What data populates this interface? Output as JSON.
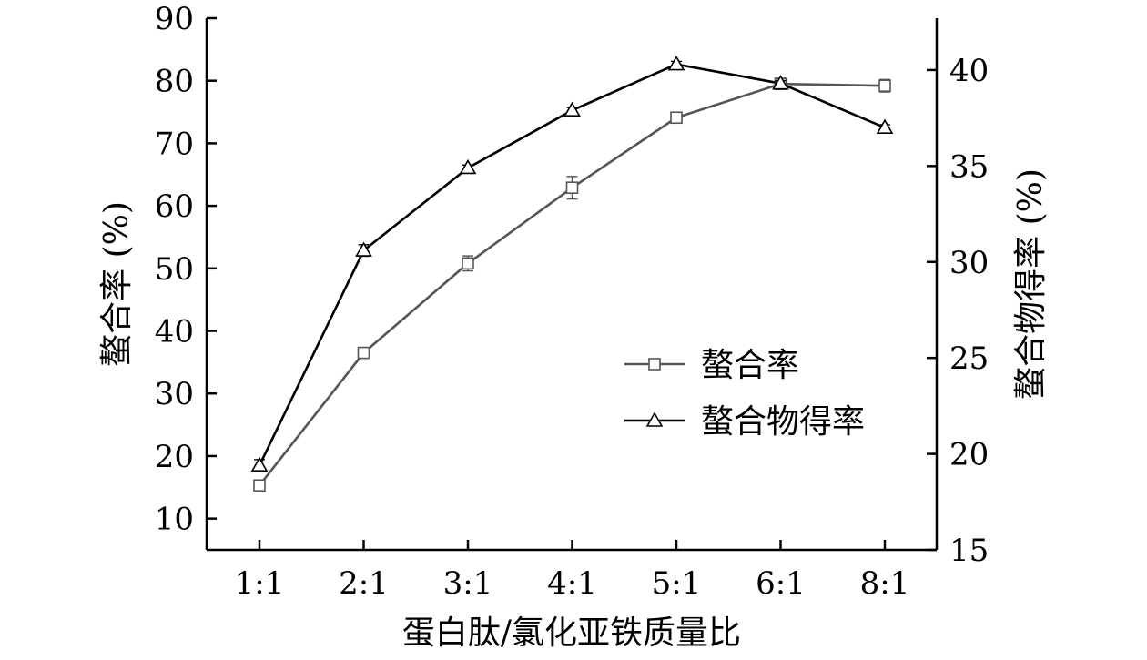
{
  "chart_data": {
    "type": "line",
    "categories": [
      "1:1",
      "2:1",
      "3:1",
      "4:1",
      "5:1",
      "6:1",
      "8:1"
    ],
    "xlabel": "蛋白肽/氯化亚铁质量比",
    "ylabel_left": "螯合率 (%)",
    "ylabel_right": "螯合物得率 (%)",
    "ylim_left": [
      5,
      90
    ],
    "yticks_left": [
      10,
      20,
      30,
      40,
      50,
      60,
      70,
      80,
      90
    ],
    "ylim_right": [
      15,
      42.7
    ],
    "yticks_right": [
      15,
      20,
      25,
      30,
      35,
      40
    ],
    "grid": false,
    "legend_position": "center-right",
    "series": [
      {
        "name": "螯合率",
        "axis": "left",
        "marker": "square",
        "color": "#555555",
        "values": [
          15.3,
          36.5,
          50.8,
          62.9,
          74.1,
          79.5,
          79.2
        ],
        "errors": [
          0.6,
          0.6,
          1.2,
          1.8,
          0.5,
          0.9,
          1.0
        ]
      },
      {
        "name": "螯合物得率",
        "axis": "right",
        "marker": "triangle",
        "color": "#000000",
        "values": [
          19.4,
          30.6,
          34.9,
          37.9,
          40.3,
          39.3,
          37.0
        ],
        "errors": [
          0.3,
          0.3,
          0.15,
          0.15,
          0.15,
          0.15,
          0.15
        ]
      }
    ]
  }
}
